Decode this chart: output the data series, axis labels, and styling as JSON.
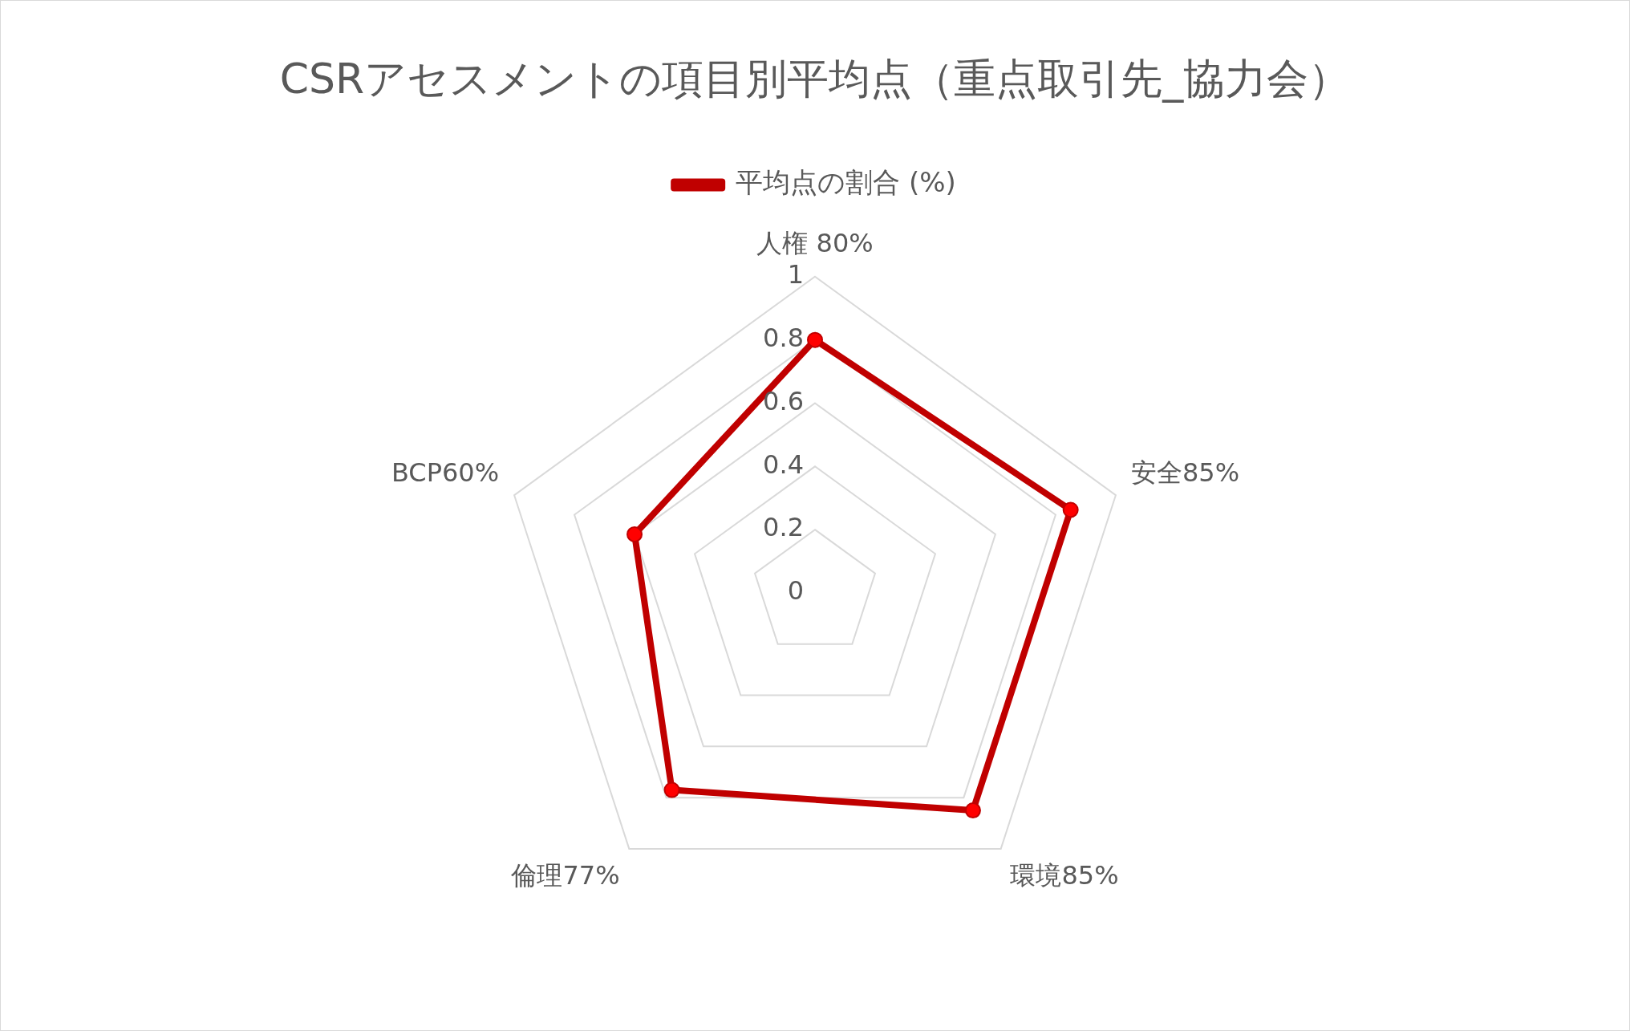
{
  "chart_data": {
    "type": "radar",
    "title": "CSRアセスメントの項目別平均点（重点取引先_協力会）",
    "categories": [
      "人権 80%",
      "安全85%",
      "環境85%",
      "倫理77%",
      "BCP60%"
    ],
    "series": [
      {
        "name": "平均点の割合 (%)",
        "color": "#c00000",
        "values": [
          0.8,
          0.85,
          0.85,
          0.77,
          0.6
        ]
      }
    ],
    "ylim": [
      0,
      1
    ],
    "yticks": [
      0,
      0.2,
      0.4,
      0.6,
      0.8,
      1
    ],
    "grid": true,
    "legend": "top",
    "marker": "circle"
  }
}
